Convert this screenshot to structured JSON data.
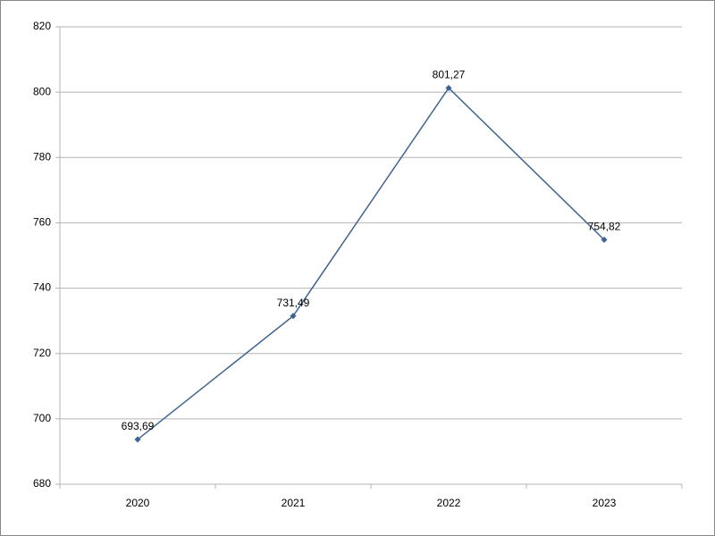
{
  "chart_data": {
    "type": "line",
    "categories": [
      "2020",
      "2021",
      "2022",
      "2023"
    ],
    "series": [
      {
        "color": "#3f6491",
        "values": [
          693.69,
          731.49,
          801.27,
          754.82
        ],
        "value_labels": [
          "693,69",
          "731,49",
          "801,27",
          "754,82"
        ]
      }
    ],
    "ylim": [
      680,
      820
    ],
    "yticks": [
      680,
      700,
      720,
      740,
      760,
      780,
      800,
      820
    ],
    "grid": true
  }
}
